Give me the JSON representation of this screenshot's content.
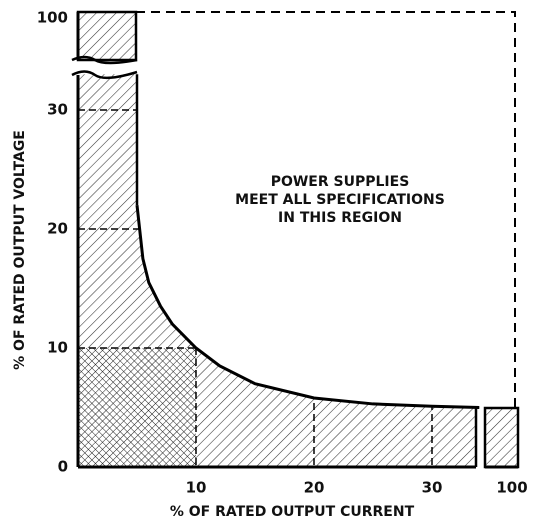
{
  "chart_data": {
    "type": "line",
    "xlabel": "% OF RATED OUTPUT CURRENT",
    "ylabel": "% OF RATED OUTPUT VOLTAGE",
    "annotation": [
      "POWER SUPPLIES",
      "MEET ALL SPECIFICATIONS",
      "IN THIS REGION"
    ],
    "x": [
      5,
      5.5,
      6,
      7,
      8,
      10,
      12,
      15,
      20,
      25,
      30,
      34
    ],
    "values": [
      22,
      17.5,
      15.5,
      13.5,
      12,
      10,
      8.5,
      7,
      5.8,
      5.3,
      5.1,
      5
    ],
    "color": "#000000",
    "xticks": [
      10,
      20,
      30,
      100
    ],
    "yticks": [
      0,
      10,
      20,
      30,
      100
    ],
    "grid": true
  }
}
